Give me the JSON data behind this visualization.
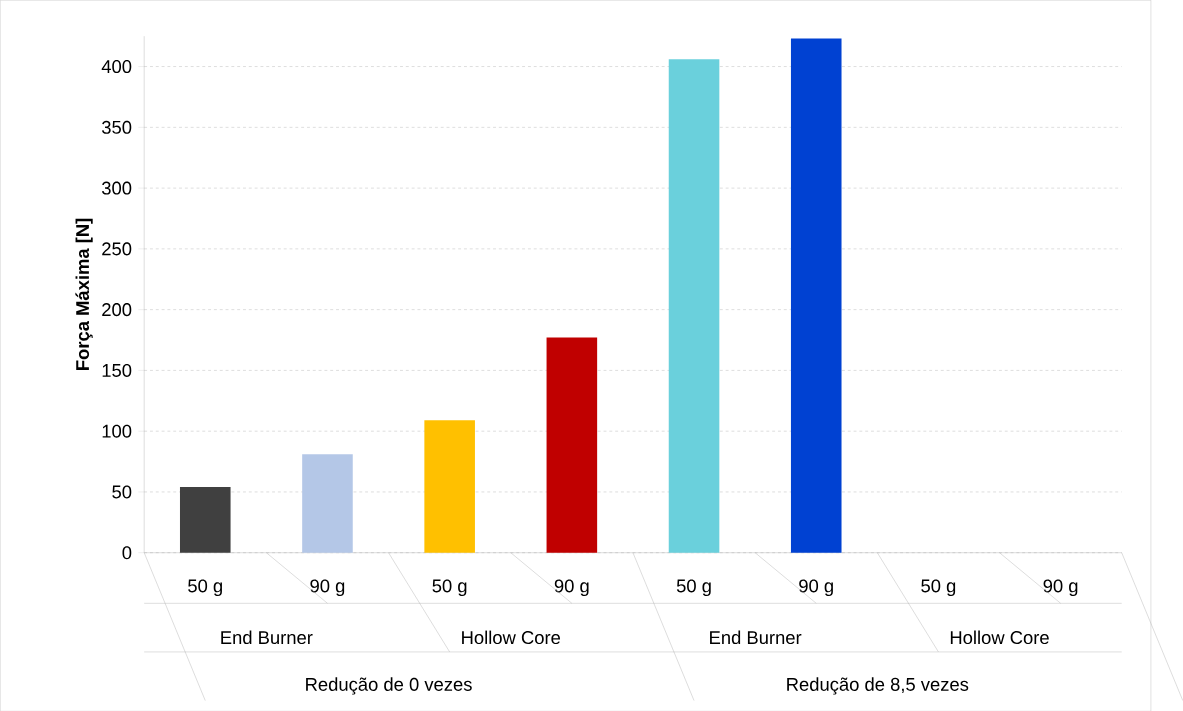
{
  "chart_data": {
    "type": "bar",
    "ylabel": "Força Máxima [N]",
    "categories": [
      "50 g",
      "90 g",
      "50 g",
      "90 g",
      "50 g",
      "90 g",
      "50 g",
      "90 g"
    ],
    "values": [
      54,
      81,
      109,
      177,
      406,
      423,
      null,
      null
    ],
    "colors": [
      "#404040",
      "#b4c7e7",
      "#ffc000",
      "#c00000",
      "#6ad0dc",
      "#0041d2",
      "#808080",
      "#808080"
    ],
    "ylim": [
      0,
      425
    ],
    "yticks": [
      0,
      50,
      100,
      150,
      200,
      250,
      300,
      350,
      400
    ],
    "grid": "y",
    "annotations": [
      "End Burner",
      "Hollow Core",
      "End Burner",
      "Hollow Core",
      "Redução de 0 vezes",
      "Redução de 8,5 vezes"
    ]
  }
}
